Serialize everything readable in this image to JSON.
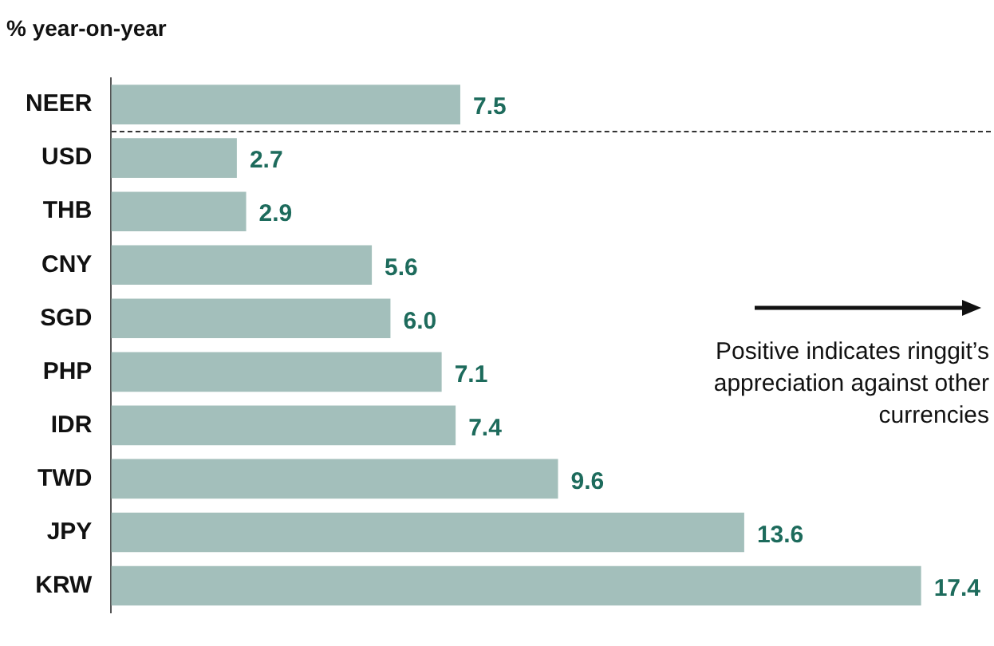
{
  "chart_data": {
    "type": "bar",
    "orientation": "horizontal",
    "title": "% year-on-year",
    "categories": [
      "NEER",
      "USD",
      "THB",
      "CNY",
      "SGD",
      "PHP",
      "IDR",
      "TWD",
      "JPY",
      "KRW"
    ],
    "values": [
      7.5,
      2.7,
      2.9,
      5.6,
      6.0,
      7.1,
      7.4,
      9.6,
      13.6,
      17.4
    ],
    "value_labels": [
      "7.5",
      "2.7",
      "2.9",
      "5.6",
      "6.0",
      "7.1",
      "7.4",
      "9.6",
      "13.6",
      "17.4"
    ],
    "color": "#a3bfbb",
    "annotations": [
      "Positive indicates ringgit’s appreciation against other currencies"
    ],
    "legend": false
  }
}
